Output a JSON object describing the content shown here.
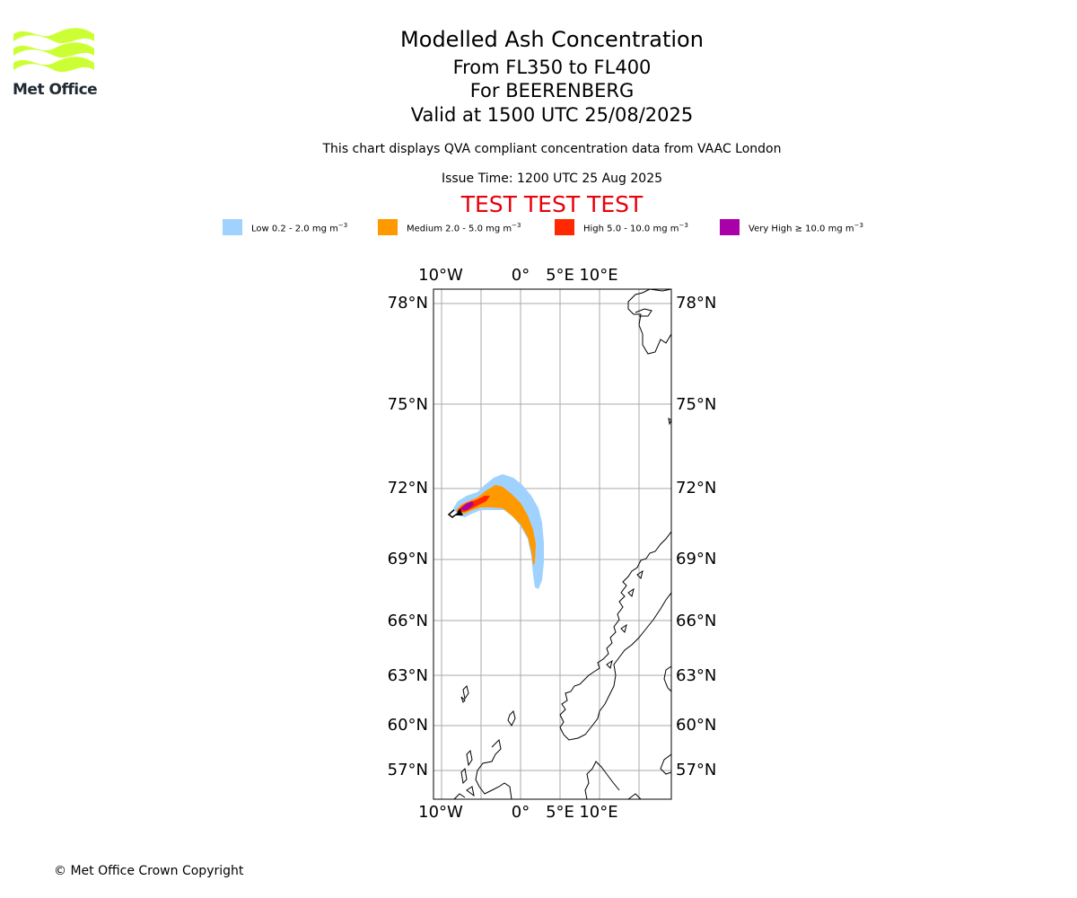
{
  "logo": {
    "text": "Met Office",
    "color": "#ccff33"
  },
  "title": {
    "main": "Modelled Ash Concentration",
    "levels": "From FL350 to FL400",
    "volcano": "For BEERENBERG",
    "valid": "Valid at 1500 UTC 25/08/2025"
  },
  "note": "This chart displays QVA compliant concentration data from VAAC London",
  "issue_time": "Issue Time: 1200 UTC 25 Aug 2025",
  "test_banner": "TEST TEST TEST",
  "legend": [
    {
      "label": "Low 0.2 - 2.0 mg m",
      "sup": "−3",
      "color": "#a0d2ff"
    },
    {
      "label": "Medium 2.0 - 5.0 mg m",
      "sup": "−3",
      "color": "#ff9900"
    },
    {
      "label": "High 5.0 - 10.0 mg m",
      "sup": "−3",
      "color": "#ff2800"
    },
    {
      "label": "Very High  ≥  10.0 mg m",
      "sup": "−3",
      "color": "#aa00aa"
    }
  ],
  "map": {
    "lon_labels": [
      "10°W",
      "0°",
      "5°E",
      "10°E"
    ],
    "lat_labels": [
      "78°N",
      "75°N",
      "72°N",
      "69°N",
      "66°N",
      "63°N",
      "60°N",
      "57°N"
    ],
    "grid_color": "#aaaaaa",
    "volcano_marker": "black-triangle"
  },
  "copyright": "© Met Office Crown Copyright"
}
